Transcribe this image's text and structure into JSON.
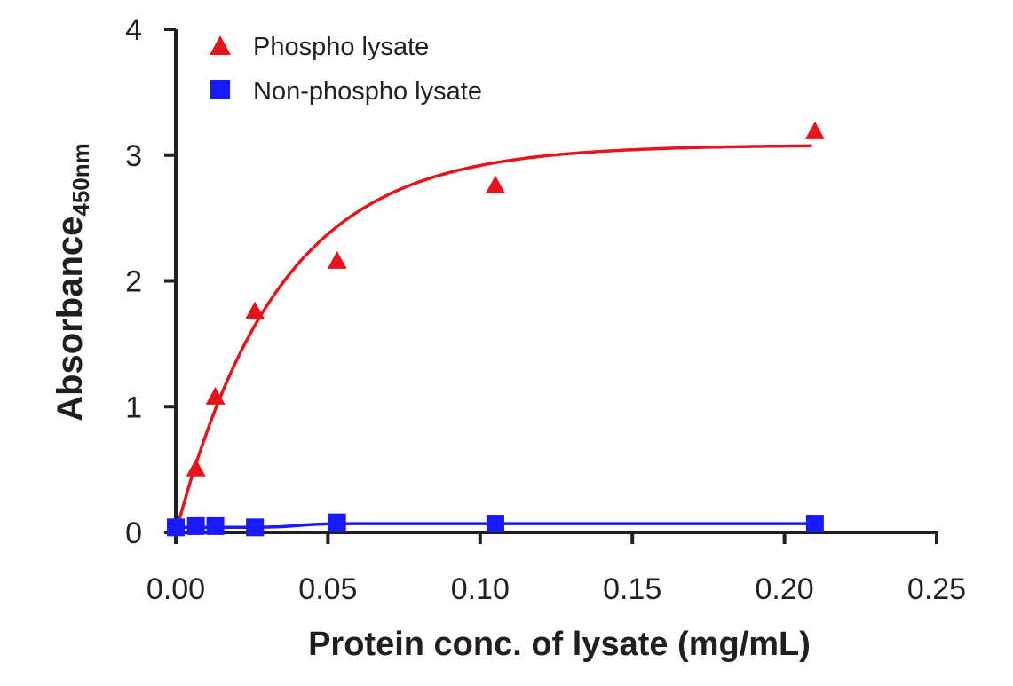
{
  "chart_data": {
    "type": "scatter",
    "title": "",
    "xlabel": "Protein conc. of lysate (mg/mL)",
    "ylabel": "Absorbance",
    "ylabel_subscript": "450nm",
    "xlim": [
      0,
      0.25
    ],
    "ylim": [
      0,
      4
    ],
    "xticks": [
      "0.00",
      "0.05",
      "0.10",
      "0.15",
      "0.20",
      "0.25"
    ],
    "xtick_values": [
      0,
      0.05,
      0.1,
      0.15,
      0.2,
      0.25
    ],
    "yticks": [
      "0",
      "1",
      "2",
      "3",
      "4"
    ],
    "ytick_values": [
      0,
      1,
      2,
      3,
      4
    ],
    "grid": false,
    "legend_position": "top-left",
    "series": [
      {
        "name": "Phospho lysate",
        "marker": "triangle",
        "color": "#e8141b",
        "x": [
          0.0066,
          0.013,
          0.026,
          0.053,
          0.105,
          0.21
        ],
        "y": [
          0.51,
          1.08,
          1.76,
          2.16,
          2.76,
          3.19
        ],
        "fit": {
          "model": "one-phase association",
          "plateau": 3.08,
          "k": 0.034
        }
      },
      {
        "name": "Non-phospho lysate",
        "marker": "square",
        "color": "#1a1aff",
        "x": [
          0,
          0.0066,
          0.013,
          0.026,
          0.053,
          0.105,
          0.21
        ],
        "y": [
          0.04,
          0.05,
          0.05,
          0.04,
          0.08,
          0.07,
          0.07
        ],
        "fit": {
          "model": "flat",
          "low": 0.04,
          "high": 0.07
        }
      }
    ]
  }
}
